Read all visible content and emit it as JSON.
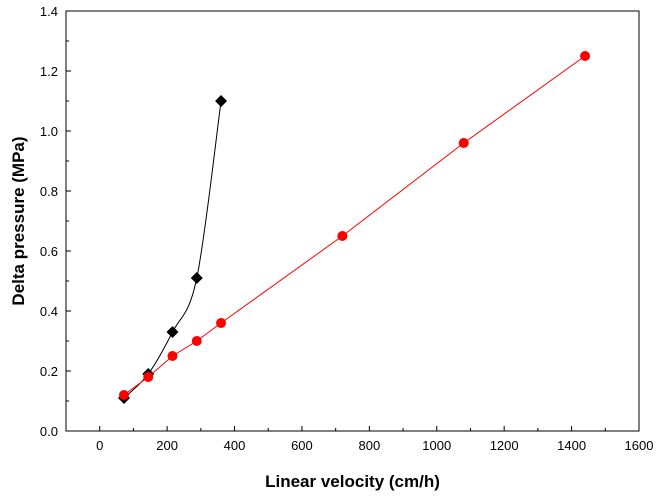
{
  "chart_data": {
    "type": "line",
    "title": "",
    "xlabel": "Linear velocity (cm/h)",
    "ylabel": "Delta pressure (MPa)",
    "xlim": [
      -100,
      1600
    ],
    "ylim": [
      0.0,
      1.4
    ],
    "x_ticks": [
      0,
      200,
      400,
      600,
      800,
      1000,
      1200,
      1400,
      1600
    ],
    "x_tick_labels": [
      "0",
      "200",
      "400",
      "600",
      "800",
      "1000",
      "1200",
      "1400",
      "1600"
    ],
    "y_ticks": [
      0.0,
      0.2,
      0.4,
      0.6,
      0.8,
      1.0,
      1.2,
      1.4
    ],
    "y_tick_labels": [
      "0.0",
      "0.2",
      "0.4",
      "0.6",
      "0.8",
      "1.0",
      "1.2",
      "1.4"
    ],
    "grid": false,
    "legend": "none",
    "series": [
      {
        "color": "#000000",
        "marker": "diamond",
        "line": "smooth",
        "x": [
          72,
          144,
          216,
          288,
          360
        ],
        "y": [
          0.11,
          0.19,
          0.33,
          0.51,
          1.1
        ]
      },
      {
        "color": "#ff0000",
        "marker": "circle",
        "line": "straight",
        "x": [
          72,
          144,
          216,
          288,
          360,
          720,
          1080,
          1440
        ],
        "y": [
          0.12,
          0.18,
          0.25,
          0.3,
          0.36,
          0.65,
          0.96,
          1.25
        ]
      }
    ]
  }
}
